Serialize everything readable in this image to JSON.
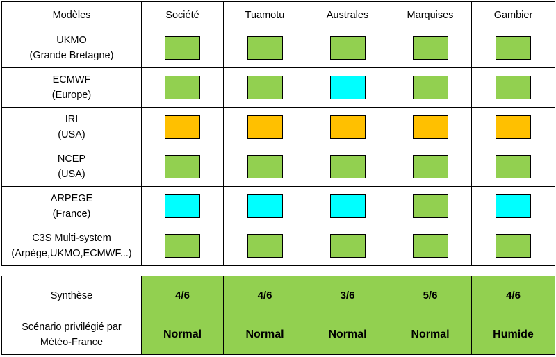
{
  "header": {
    "first_col": "Modèles",
    "regions": [
      "Société",
      "Tuamotu",
      "Australes",
      "Marquises",
      "Gambier"
    ]
  },
  "colors": {
    "green": "#92d050",
    "cyan": "#00ffff",
    "orange": "#ffc000"
  },
  "models": [
    {
      "line1": "UKMO",
      "line2": "(Grande Bretagne)",
      "cells": [
        "green",
        "green",
        "green",
        "green",
        "green"
      ]
    },
    {
      "line1": "ECMWF",
      "line2": "(Europe)",
      "cells": [
        "green",
        "green",
        "cyan",
        "green",
        "green"
      ]
    },
    {
      "line1": "IRI",
      "line2": "(USA)",
      "cells": [
        "orange",
        "orange",
        "orange",
        "orange",
        "orange"
      ]
    },
    {
      "line1": "NCEP",
      "line2": "(USA)",
      "cells": [
        "green",
        "green",
        "green",
        "green",
        "green"
      ]
    },
    {
      "line1": "ARPEGE",
      "line2": "(France)",
      "cells": [
        "cyan",
        "cyan",
        "cyan",
        "green",
        "cyan"
      ]
    },
    {
      "line1": "C3S Multi-system",
      "line2": "(Arpège,UKMO,ECMWF...)",
      "cells": [
        "green",
        "green",
        "green",
        "green",
        "green"
      ]
    }
  ],
  "summary": {
    "synthese_label": "Synthèse",
    "synthese": [
      "4/6",
      "4/6",
      "3/6",
      "5/6",
      "4/6"
    ],
    "scenario_label_line1": "Scénario privilégié par",
    "scenario_label_line2": "Météo-France",
    "scenario": [
      "Normal",
      "Normal",
      "Normal",
      "Normal",
      "Humide"
    ]
  }
}
